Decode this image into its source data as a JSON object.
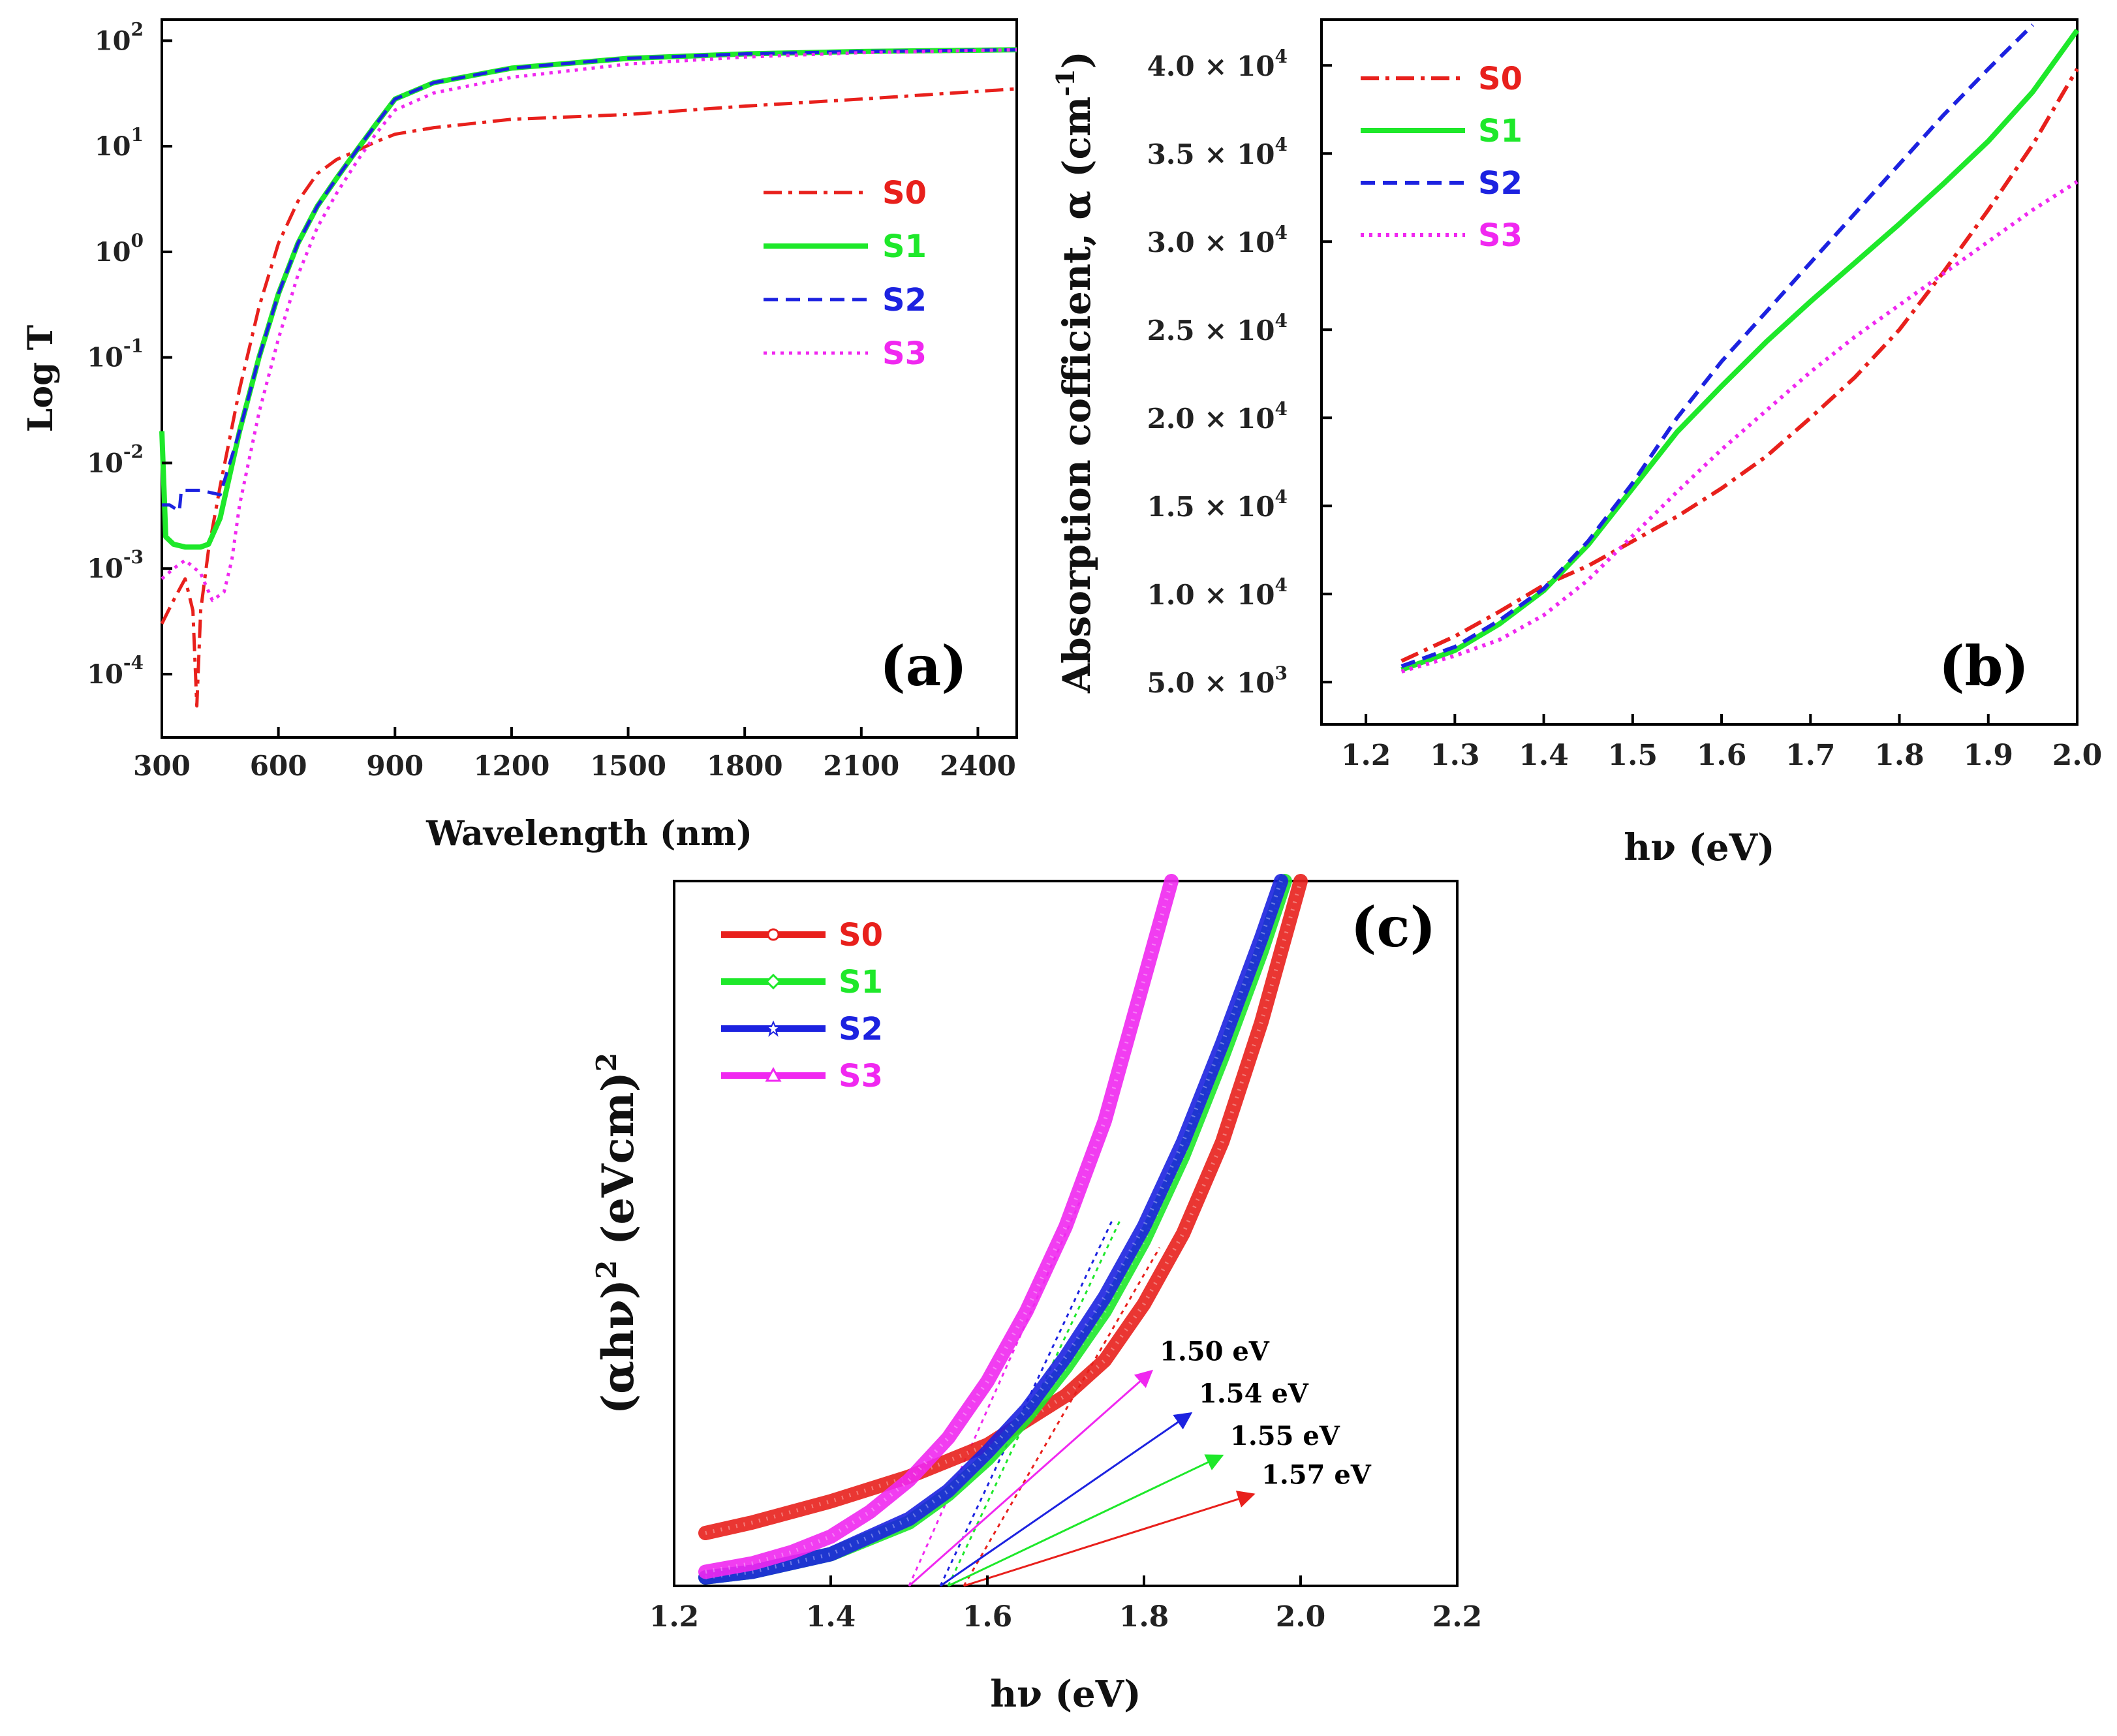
{
  "colors": {
    "S0": "#e8201c",
    "S1": "#1ee82a",
    "S2": "#1c22e0",
    "S3": "#f028f0"
  },
  "chart_data": [
    {
      "type": "line",
      "panel_label": "(a)",
      "xlabel": "Wavelength (nm)",
      "ylabel": "Log T",
      "xlim": [
        300,
        2500
      ],
      "ylim_log10": [
        -4.6,
        2.2
      ],
      "y_scale": "log",
      "x_ticks": [
        "300",
        "600",
        "900",
        "1200",
        "1500",
        "1800",
        "2100",
        "2400"
      ],
      "y_tick_mantissa": "10",
      "y_tick_exponents": [
        "-4",
        "-3",
        "-2",
        "-1",
        "0",
        "1",
        "2"
      ],
      "legend_position": "right",
      "series": [
        {
          "name": "S0",
          "style": "dashdot",
          "x": [
            300,
            330,
            360,
            380,
            390,
            400,
            420,
            450,
            500,
            550,
            600,
            650,
            700,
            750,
            800,
            850,
            900,
            1000,
            1200,
            1500,
            1800,
            2100,
            2500
          ],
          "y": [
            0.0003,
            0.0005,
            0.0008,
            0.0004,
            5e-05,
            0.0004,
            0.0015,
            0.006,
            0.05,
            0.3,
            1.2,
            3,
            5.5,
            7.5,
            9,
            11,
            13,
            15,
            18,
            20,
            24,
            28,
            35
          ]
        },
        {
          "name": "S1",
          "style": "solid",
          "x": [
            300,
            310,
            330,
            360,
            400,
            420,
            450,
            500,
            550,
            600,
            650,
            700,
            750,
            800,
            850,
            900,
            1000,
            1200,
            1500,
            1800,
            2100,
            2500
          ],
          "y": [
            0.02,
            0.002,
            0.0017,
            0.0016,
            0.0016,
            0.0017,
            0.003,
            0.02,
            0.1,
            0.4,
            1.2,
            2.7,
            5,
            9,
            16,
            28,
            40,
            55,
            68,
            75,
            79,
            82
          ]
        },
        {
          "name": "S2",
          "style": "dashed",
          "x": [
            300,
            320,
            345,
            350,
            400,
            450,
            500,
            550,
            600,
            650,
            700,
            750,
            800,
            850,
            900,
            1000,
            1200,
            1500,
            1800,
            2100,
            2500
          ],
          "y": [
            0.004,
            0.004,
            0.0035,
            0.0055,
            0.0055,
            0.005,
            0.02,
            0.1,
            0.4,
            1.2,
            2.7,
            5,
            9,
            16,
            28,
            40,
            55,
            68,
            75,
            79,
            82
          ]
        },
        {
          "name": "S3",
          "style": "dotted",
          "x": [
            300,
            330,
            360,
            400,
            430,
            460,
            480,
            500,
            550,
            600,
            650,
            700,
            750,
            800,
            850,
            900,
            1000,
            1200,
            1500,
            1800,
            2100,
            2500
          ],
          "y": [
            0.0008,
            0.001,
            0.0012,
            0.0009,
            0.0005,
            0.0006,
            0.0012,
            0.004,
            0.03,
            0.15,
            0.6,
            1.7,
            3.6,
            7,
            13,
            22,
            32,
            45,
            60,
            70,
            77,
            82
          ]
        }
      ]
    },
    {
      "type": "line",
      "panel_label": "(b)",
      "xlabel": "hν (eV)",
      "ylabel": "Absorption cofficient, α (cm",
      "ylabel_sup": "-1",
      "ylabel_end": ")",
      "xlim": [
        1.15,
        2.0
      ],
      "ylim": [
        2600,
        42600
      ],
      "x_ticks": [
        "1.2",
        "1.3",
        "1.4",
        "1.5",
        "1.6",
        "1.7",
        "1.8",
        "1.9",
        "2.0"
      ],
      "y_tick_values": [
        5000,
        10000,
        15000,
        20000,
        25000,
        30000,
        35000,
        40000
      ],
      "y_tick_labels": [
        "5.0 × 10",
        "1.0 × 10",
        "1.5 × 10",
        "2.0 × 10",
        "2.5 × 10",
        "3.0 × 10",
        "3.5 × 10",
        "4.0 × 10"
      ],
      "y_tick_exps": [
        "3",
        "4",
        "4",
        "4",
        "4",
        "4",
        "4",
        "4"
      ],
      "legend_position": "top-left",
      "series": [
        {
          "name": "S0",
          "style": "dashdot",
          "x": [
            1.24,
            1.3,
            1.35,
            1.4,
            1.45,
            1.5,
            1.55,
            1.6,
            1.65,
            1.7,
            1.75,
            1.8,
            1.85,
            1.9,
            1.95,
            2.0
          ],
          "y": [
            6200,
            7600,
            9000,
            10500,
            11600,
            13000,
            14400,
            16000,
            17800,
            20000,
            22300,
            25000,
            28300,
            31800,
            35500,
            39800
          ]
        },
        {
          "name": "S1",
          "style": "solid",
          "x": [
            1.24,
            1.3,
            1.35,
            1.4,
            1.45,
            1.5,
            1.55,
            1.6,
            1.65,
            1.7,
            1.75,
            1.8,
            1.85,
            1.9,
            1.95,
            2.0
          ],
          "y": [
            5700,
            6800,
            8300,
            10200,
            12800,
            16000,
            19200,
            21800,
            24300,
            26600,
            28800,
            31000,
            33300,
            35700,
            38500,
            42000
          ]
        },
        {
          "name": "S2",
          "style": "dashed",
          "x": [
            1.24,
            1.3,
            1.35,
            1.4,
            1.45,
            1.5,
            1.55,
            1.6,
            1.65,
            1.7,
            1.75,
            1.8,
            1.85,
            1.9,
            1.95
          ],
          "y": [
            5900,
            7000,
            8500,
            10300,
            13000,
            16300,
            20000,
            23200,
            26000,
            28800,
            31600,
            34400,
            37200,
            39800,
            42300
          ]
        },
        {
          "name": "S3",
          "style": "dotted",
          "x": [
            1.24,
            1.3,
            1.35,
            1.4,
            1.45,
            1.5,
            1.55,
            1.6,
            1.65,
            1.7,
            1.75,
            1.8,
            1.85,
            1.9,
            1.95,
            2.0
          ],
          "y": [
            5600,
            6500,
            7400,
            8800,
            10800,
            13300,
            15800,
            18200,
            20400,
            22600,
            24600,
            26400,
            28200,
            30000,
            31800,
            33400
          ]
        }
      ]
    },
    {
      "type": "scatter",
      "panel_label": "(c)",
      "xlabel": "hν (eV)",
      "ylabel": "(αhν)",
      "ylabel_sup1": "2",
      "ylabel_mid": " (eVcm)",
      "ylabel_sup2": "2",
      "xlim": [
        1.2,
        2.2
      ],
      "ylim": [
        0,
        100
      ],
      "x_ticks": [
        "1.2",
        "1.4",
        "1.6",
        "1.8",
        "2.0",
        "2.2"
      ],
      "legend_position": "top-left",
      "series": [
        {
          "name": "S0",
          "marker": "circle",
          "x": [
            1.24,
            1.3,
            1.4,
            1.5,
            1.6,
            1.7,
            1.75,
            1.8,
            1.85,
            1.9,
            1.95,
            2.0
          ],
          "y": [
            7.5,
            9,
            12,
            15.5,
            20,
            27,
            32,
            40,
            50,
            63,
            80,
            100
          ]
        },
        {
          "name": "S1",
          "marker": "diamond",
          "x": [
            1.24,
            1.3,
            1.4,
            1.5,
            1.55,
            1.6,
            1.65,
            1.7,
            1.75,
            1.8,
            1.85,
            1.9,
            1.95,
            1.98
          ],
          "y": [
            1.2,
            2,
            4.5,
            9,
            13,
            18,
            24,
            31,
            39,
            49,
            61,
            75,
            90,
            100
          ]
        },
        {
          "name": "S2",
          "marker": "star",
          "x": [
            1.24,
            1.3,
            1.4,
            1.5,
            1.55,
            1.6,
            1.65,
            1.7,
            1.75,
            1.8,
            1.85,
            1.9,
            1.95,
            1.975
          ],
          "y": [
            1.2,
            2,
            4.5,
            9.5,
            13.5,
            19,
            25,
            32.5,
            41,
            51,
            63,
            77,
            92,
            100
          ]
        },
        {
          "name": "S3",
          "marker": "triangle",
          "x": [
            1.24,
            1.3,
            1.35,
            1.4,
            1.45,
            1.5,
            1.55,
            1.6,
            1.65,
            1.7,
            1.75,
            1.8,
            1.835
          ],
          "y": [
            2,
            3.2,
            4.8,
            7,
            10.5,
            15,
            21,
            29,
            39,
            51,
            66,
            86,
            100
          ]
        }
      ],
      "tangents": [
        {
          "name": "S3",
          "x": [
            1.5,
            1.72
          ],
          "y": [
            0,
            55
          ]
        },
        {
          "name": "S2",
          "x": [
            1.54,
            1.76
          ],
          "y": [
            0,
            52
          ]
        },
        {
          "name": "S1",
          "x": [
            1.55,
            1.77
          ],
          "y": [
            0,
            52
          ]
        },
        {
          "name": "S0",
          "x": [
            1.57,
            1.82
          ],
          "y": [
            0,
            48
          ]
        }
      ],
      "annotations": [
        {
          "text": "1.50 eV",
          "color": "S3",
          "from": [
            1.5,
            0
          ],
          "to": [
            1.81,
            30.5
          ],
          "text_at": [
            1.82,
            32
          ]
        },
        {
          "text": "1.54 eV",
          "color": "S2",
          "from": [
            1.54,
            0
          ],
          "to": [
            1.86,
            24.5
          ],
          "text_at": [
            1.87,
            26
          ]
        },
        {
          "text": "1.55 eV",
          "color": "S1",
          "from": [
            1.55,
            0
          ],
          "to": [
            1.9,
            18.5
          ],
          "text_at": [
            1.91,
            20
          ]
        },
        {
          "text": "1.57 eV",
          "color": "S0",
          "from": [
            1.57,
            0
          ],
          "to": [
            1.94,
            13
          ],
          "text_at": [
            1.95,
            14.5
          ]
        }
      ]
    }
  ]
}
